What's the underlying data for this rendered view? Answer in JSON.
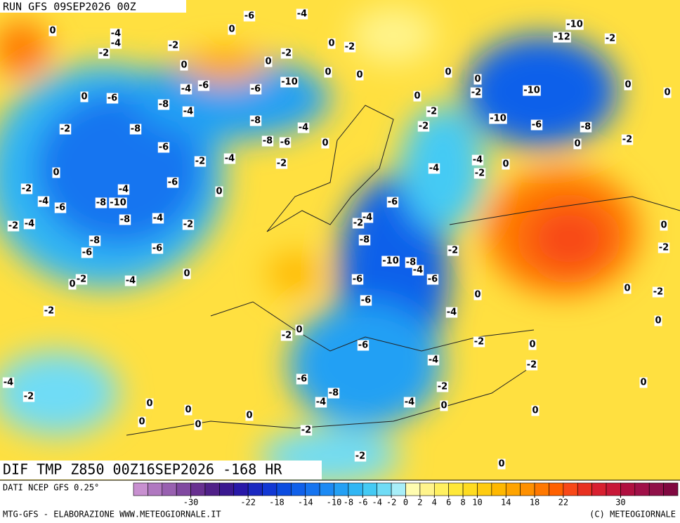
{
  "header": {
    "run": "RUN GFS 09SEP2026 00Z"
  },
  "map": {
    "title": "DIF TMP Z850 00Z16SEP2026 -168 HR",
    "contour_labels": [
      0,
      -4,
      -4,
      -2,
      -2,
      -4,
      -6,
      0,
      0,
      -2,
      0,
      -2,
      0,
      0,
      -6,
      -4,
      -6,
      -8,
      -4,
      -6,
      -10,
      0,
      0,
      -2,
      -8,
      -6,
      -8,
      -8,
      -6,
      -4,
      0,
      -2,
      -4,
      -2,
      0,
      -2,
      -4,
      -6,
      0,
      -4,
      -6,
      -10,
      -8,
      -8,
      -4,
      -2,
      -2,
      -4,
      -8,
      -6,
      -6,
      0,
      -2,
      -4,
      0,
      -2,
      -2,
      0,
      -6,
      -6,
      -8,
      -4,
      -4,
      0,
      -2,
      -4,
      -2,
      0,
      -2,
      0,
      0,
      0,
      -2,
      -2,
      0,
      -10,
      -12,
      -2,
      0,
      0,
      -2,
      -10,
      0,
      0,
      0,
      -2,
      -2,
      -10,
      -6,
      -8,
      0,
      -2,
      -4,
      -2,
      0,
      -4,
      -6,
      -4,
      -2,
      -8,
      -10,
      -8,
      -4,
      -6,
      -6,
      -6,
      -4,
      -2,
      0,
      -2,
      -4,
      0,
      0,
      0,
      0,
      0,
      -2,
      -2,
      0,
      0
    ]
  },
  "legend": {
    "source": "DATI NCEP GFS 0.25°",
    "colors": [
      "#c890d0",
      "#b078c0",
      "#9860b0",
      "#8048a0",
      "#683090",
      "#502088",
      "#3a1890",
      "#2818a8",
      "#1a28c0",
      "#1238d4",
      "#0c4ce0",
      "#1060ea",
      "#1674f0",
      "#1c8af4",
      "#24a0f4",
      "#30b6f4",
      "#44caf4",
      "#70dcf6",
      "#a8eef8",
      "#fffcb0",
      "#fff48c",
      "#fff060",
      "#ffe838",
      "#ffdc20",
      "#ffcc10",
      "#ffb800",
      "#ffa400",
      "#ff9000",
      "#ff7800",
      "#ff6000",
      "#f84818",
      "#e83020",
      "#d82030",
      "#c81838",
      "#b01040",
      "#a01048",
      "#901048",
      "#800840"
    ],
    "ticks": [
      -30,
      -22,
      -18,
      -14,
      -10,
      -8,
      -6,
      -4,
      -2,
      0,
      2,
      4,
      6,
      8,
      10,
      14,
      18,
      22,
      30
    ]
  },
  "footer": {
    "left": "MTG-GFS - ELABORAZIONE WWW.METEOGIORNALE.IT",
    "right": "(C) METEOGIORNALE"
  }
}
